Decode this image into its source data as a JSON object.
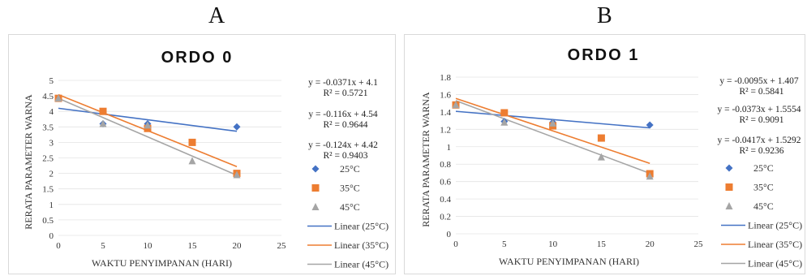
{
  "panels": [
    {
      "letter": "A"
    },
    {
      "letter": "B"
    }
  ],
  "chart_data": [
    {
      "type": "scatter",
      "title": "ORDO 0",
      "xlabel": "WAKTU PENYIMPANAN  (HARI)",
      "ylabel": "RERATA PARAMETER WARNA",
      "xlim": [
        0,
        25
      ],
      "ylim": [
        0,
        5
      ],
      "x_ticks": [
        "0",
        "5",
        "10",
        "15",
        "20",
        "25"
      ],
      "y_ticks": [
        "0",
        "0.5",
        "1",
        "1.5",
        "2",
        "2.5",
        "3",
        "3.5",
        "4",
        "4.5",
        "5"
      ],
      "series": [
        {
          "name": "25°C",
          "marker": "diamond",
          "color": "#4472c4",
          "points": [
            [
              0,
              4.42
            ],
            [
              5,
              3.6
            ],
            [
              10,
              3.6
            ],
            [
              20,
              3.5
            ]
          ]
        },
        {
          "name": "35°C",
          "marker": "square",
          "color": "#ed7d31",
          "points": [
            [
              0,
              4.42
            ],
            [
              5,
              4.0
            ],
            [
              10,
              3.45
            ],
            [
              15,
              3.0
            ],
            [
              20,
              2.0
            ]
          ]
        },
        {
          "name": "45°C",
          "marker": "triangle",
          "color": "#a5a5a5",
          "points": [
            [
              0,
              4.42
            ],
            [
              5,
              3.6
            ],
            [
              10,
              3.55
            ],
            [
              15,
              2.4
            ],
            [
              20,
              1.95
            ]
          ]
        }
      ],
      "trendlines": [
        {
          "name": "Linear (25°C)",
          "color": "#4472c4",
          "slope": -0.0371,
          "intercept": 4.1,
          "x_range": [
            0,
            20
          ],
          "equation": "y = -0.0371x + 4.1",
          "r2": "R² = 0.5721"
        },
        {
          "name": "Linear (35°C)",
          "color": "#ed7d31",
          "slope": -0.116,
          "intercept": 4.54,
          "x_range": [
            0,
            20
          ],
          "equation": "y = -0.116x + 4.54",
          "r2": "R² = 0.9644"
        },
        {
          "name": "Linear (45°C)",
          "color": "#a5a5a5",
          "slope": -0.124,
          "intercept": 4.42,
          "x_range": [
            0,
            20
          ],
          "equation": "y = -0.124x + 4.42",
          "r2": "R² = 0.9403"
        }
      ],
      "grid": true,
      "legend_position": "right"
    },
    {
      "type": "scatter",
      "title": "ORDO 1",
      "xlabel": "WAKTU PENYIMPANAN  (HARI)",
      "ylabel": "RERATA PARAMETER WARNA",
      "xlim": [
        0,
        25
      ],
      "ylim": [
        0,
        1.8
      ],
      "x_ticks": [
        "0",
        "5",
        "10",
        "15",
        "20",
        "25"
      ],
      "y_ticks": [
        "0",
        "0.2",
        "0.4",
        "0.6",
        "0.8",
        "1",
        "1.2",
        "1.4",
        "1.6",
        "1.8"
      ],
      "series": [
        {
          "name": "25°C",
          "marker": "diamond",
          "color": "#4472c4",
          "points": [
            [
              0,
              1.48
            ],
            [
              5,
              1.29
            ],
            [
              10,
              1.28
            ],
            [
              20,
              1.25
            ]
          ]
        },
        {
          "name": "35°C",
          "marker": "square",
          "color": "#ed7d31",
          "points": [
            [
              0,
              1.48
            ],
            [
              5,
              1.39
            ],
            [
              10,
              1.24
            ],
            [
              15,
              1.1
            ],
            [
              20,
              0.69
            ]
          ]
        },
        {
          "name": "45°C",
          "marker": "triangle",
          "color": "#a5a5a5",
          "points": [
            [
              0,
              1.48
            ],
            [
              5,
              1.28
            ],
            [
              10,
              1.27
            ],
            [
              15,
              0.88
            ],
            [
              20,
              0.66
            ]
          ]
        }
      ],
      "trendlines": [
        {
          "name": "Linear (25°C)",
          "color": "#4472c4",
          "slope": -0.0095,
          "intercept": 1.407,
          "x_range": [
            0,
            20
          ],
          "equation": "y = -0.0095x + 1.407",
          "r2": "R² = 0.5841"
        },
        {
          "name": "Linear (35°C)",
          "color": "#ed7d31",
          "slope": -0.0373,
          "intercept": 1.5554,
          "x_range": [
            0,
            20
          ],
          "equation": "y = -0.0373x + 1.5554",
          "r2": "R² = 0.9091"
        },
        {
          "name": "Linear (45°C)",
          "color": "#a5a5a5",
          "slope": -0.0417,
          "intercept": 1.5292,
          "x_range": [
            0,
            20
          ],
          "equation": "y = -0.0417x + 1.5292",
          "r2": "R² = 0.9236"
        }
      ],
      "grid": true,
      "legend_position": "right"
    }
  ]
}
